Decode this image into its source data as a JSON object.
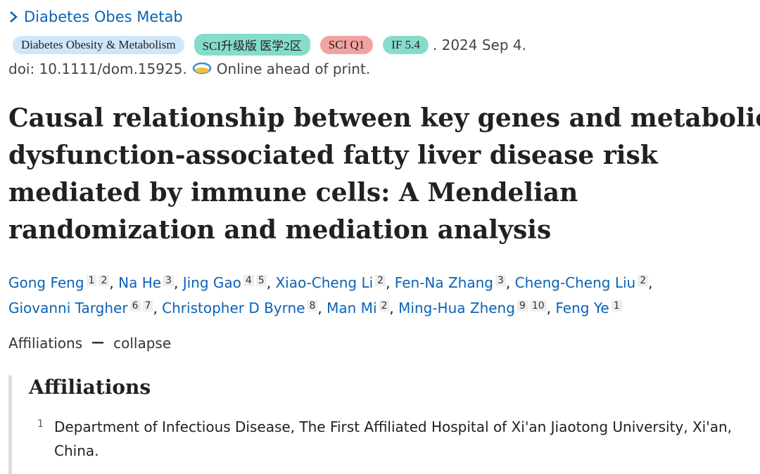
{
  "journal": "Diabetes Obes Metab",
  "badges": [
    "Diabetes Obesity & Metabolism",
    "SCI升级版 医学2区",
    "SCI Q1",
    "IF 5.4"
  ],
  "date": ". 2024 Sep 4.",
  "doi": "doi: 10.1111/dom.15925.",
  "status": "Online ahead of print.",
  "title_lines": [
    "Causal relationship between key genes and metabolic",
    "dysfunction-associated fatty liver disease risk",
    "mediated by immune cells: A Mendelian",
    "randomization and mediation analysis"
  ],
  "authors": {
    "separator": ",",
    "list": [
      {
        "name": "Gong Feng",
        "affs": [
          1,
          2
        ]
      },
      {
        "name": "Na He",
        "affs": [
          3
        ]
      },
      {
        "name": "Jing Gao",
        "affs": [
          4,
          5
        ]
      },
      {
        "name": "Xiao-Cheng Li",
        "affs": [
          2
        ]
      },
      {
        "name": "Fen-Na Zhang",
        "affs": [
          3
        ]
      },
      {
        "name": "Cheng-Cheng Liu",
        "affs": [
          2
        ]
      },
      {
        "name": "Giovanni Targher",
        "affs": [
          6,
          7
        ]
      },
      {
        "name": "Christopher D Byrne",
        "affs": [
          8
        ]
      },
      {
        "name": "Man Mi",
        "affs": [
          2
        ]
      },
      {
        "name": "Ming-Hua Zheng",
        "affs": [
          9,
          10
        ]
      },
      {
        "name": "Feng Ye",
        "affs": [
          1
        ]
      }
    ]
  },
  "affiliations_toggle": {
    "label": "Affiliations",
    "action": "collapse"
  },
  "affiliations": {
    "heading": "Affiliations",
    "items": [
      {
        "number": 1,
        "text": "Department of Infectious Disease, The First Affiliated Hospital of Xi'an Jiaotong University, Xi'an, China."
      }
    ]
  }
}
